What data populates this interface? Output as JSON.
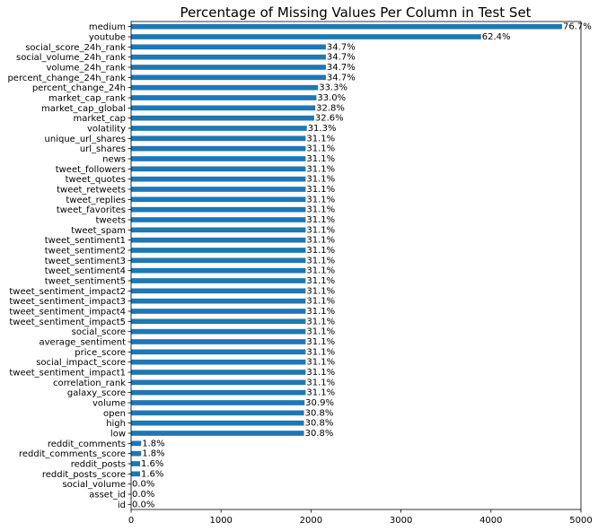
{
  "chart_data": {
    "type": "bar",
    "orientation": "horizontal",
    "title": "Percentage of Missing Values Per Column in Test Set",
    "xlabel": "",
    "ylabel": "",
    "xlim": [
      0,
      5000
    ],
    "x_ticks": [
      0,
      1000,
      2000,
      3000,
      4000,
      5000
    ],
    "grid": false,
    "bar_color": "#1f77b4",
    "categories": [
      "medium",
      "youtube",
      "social_score_24h_rank",
      "social_volume_24h_rank",
      "volume_24h_rank",
      "percent_change_24h_rank",
      "percent_change_24h",
      "market_cap_rank",
      "market_cap_global",
      "market_cap",
      "volatility",
      "unique_url_shares",
      "url_shares",
      "news",
      "tweet_followers",
      "tweet_quotes",
      "tweet_retweets",
      "tweet_replies",
      "tweet_favorites",
      "tweets",
      "tweet_spam",
      "tweet_sentiment1",
      "tweet_sentiment2",
      "tweet_sentiment3",
      "tweet_sentiment4",
      "tweet_sentiment5",
      "tweet_sentiment_impact2",
      "tweet_sentiment_impact3",
      "tweet_sentiment_impact4",
      "tweet_sentiment_impact5",
      "social_score",
      "average_sentiment",
      "price_score",
      "social_impact_score",
      "tweet_sentiment_impact1",
      "correlation_rank",
      "galaxy_score",
      "volume",
      "open",
      "high",
      "low",
      "reddit_comments",
      "reddit_comments_score",
      "reddit_posts",
      "reddit_posts_score",
      "social_volume",
      "asset_id",
      "id"
    ],
    "values": [
      4790,
      3890,
      2165,
      2165,
      2165,
      2165,
      2078,
      2060,
      2047,
      2035,
      1953,
      1940,
      1940,
      1940,
      1940,
      1940,
      1940,
      1940,
      1940,
      1940,
      1940,
      1940,
      1940,
      1940,
      1940,
      1940,
      1940,
      1940,
      1940,
      1940,
      1940,
      1940,
      1940,
      1940,
      1940,
      1940,
      1940,
      1928,
      1922,
      1922,
      1922,
      112,
      112,
      100,
      100,
      0,
      0,
      0
    ],
    "value_labels": [
      "76.7%",
      "62.4%",
      "34.7%",
      "34.7%",
      "34.7%",
      "34.7%",
      "33.3%",
      "33.0%",
      "32.8%",
      "32.6%",
      "31.3%",
      "31.1%",
      "31.1%",
      "31.1%",
      "31.1%",
      "31.1%",
      "31.1%",
      "31.1%",
      "31.1%",
      "31.1%",
      "31.1%",
      "31.1%",
      "31.1%",
      "31.1%",
      "31.1%",
      "31.1%",
      "31.1%",
      "31.1%",
      "31.1%",
      "31.1%",
      "31.1%",
      "31.1%",
      "31.1%",
      "31.1%",
      "31.1%",
      "31.1%",
      "31.1%",
      "30.9%",
      "30.8%",
      "30.8%",
      "30.8%",
      "1.8%",
      "1.8%",
      "1.6%",
      "1.6%",
      "0.0%",
      "0.0%",
      "0.0%"
    ]
  }
}
